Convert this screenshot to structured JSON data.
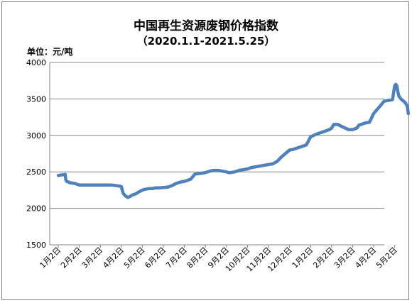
{
  "chart_data": {
    "type": "line",
    "title": "中国再生资源废钢价格指数",
    "subtitle": "（2020.1.1-2021.5.25）",
    "ylabel": "单位：元/吨",
    "xlabel": "",
    "ylim": [
      1500,
      4000
    ],
    "yticks": [
      "1500",
      "2000",
      "2500",
      "3000",
      "3500",
      "4000"
    ],
    "categories": [
      "1月2日",
      "2月2日",
      "3月2日",
      "4月2日",
      "5月2日",
      "6月2日",
      "7月2日",
      "8月2日",
      "9月2日",
      "10月2日",
      "11月2日",
      "12月2日",
      "1月2日",
      "2月2日",
      "3月2日",
      "4月2日",
      "5月2日"
    ],
    "grid": true,
    "legend": "none",
    "line_color": "#4f81bd",
    "series": [
      {
        "x": [
          0,
          0.1,
          0.2,
          0.33,
          0.36,
          0.4,
          0.5,
          0.55,
          0.6,
          0.7,
          0.8,
          0.9,
          1.0,
          1.1,
          1.2,
          1.5,
          2.0,
          2.5,
          2.8,
          3.0,
          3.05,
          3.1,
          3.2,
          3.3,
          3.4,
          3.5,
          3.7,
          3.8,
          4.0,
          4.1,
          4.3,
          4.5,
          4.6,
          4.8,
          5.0,
          5.2,
          5.4,
          5.6,
          5.8,
          6.0,
          6.3,
          6.5,
          6.8,
          7.0,
          7.2,
          7.4,
          7.6,
          7.8,
          8.0,
          8.1,
          8.2,
          8.4,
          8.6,
          8.8,
          9.0,
          9.2,
          9.4,
          9.6,
          9.8,
          10.0,
          10.2,
          10.4,
          10.6,
          10.8,
          11.0,
          11.2,
          11.4,
          11.6,
          11.8,
          12.0,
          12.3,
          12.6,
          12.9,
          13.0,
          13.1,
          13.3,
          13.5,
          13.8,
          14.0,
          14.2,
          14.3,
          14.6,
          14.8,
          15.0,
          15.3,
          15.5,
          15.7,
          15.9,
          16.0,
          16.05,
          16.1,
          16.15,
          16.2,
          16.3,
          16.5,
          16.6,
          16.65
        ],
        "values": [
          2450,
          2455,
          2460,
          2465,
          2390,
          2370,
          2360,
          2350,
          2350,
          2345,
          2340,
          2330,
          2320,
          2320,
          2320,
          2320,
          2320,
          2320,
          2310,
          2300,
          2240,
          2200,
          2170,
          2150,
          2160,
          2180,
          2200,
          2220,
          2250,
          2260,
          2270,
          2270,
          2280,
          2280,
          2285,
          2290,
          2310,
          2340,
          2360,
          2370,
          2400,
          2470,
          2480,
          2490,
          2510,
          2520,
          2520,
          2510,
          2500,
          2490,
          2490,
          2500,
          2520,
          2530,
          2540,
          2560,
          2570,
          2580,
          2590,
          2600,
          2610,
          2640,
          2700,
          2750,
          2800,
          2810,
          2830,
          2850,
          2870,
          2980,
          3020,
          3050,
          3080,
          3100,
          3150,
          3150,
          3120,
          3080,
          3080,
          3100,
          3140,
          3170,
          3180,
          3300,
          3400,
          3470,
          3480,
          3490,
          3680,
          3700,
          3680,
          3600,
          3540,
          3500,
          3450,
          3400,
          3300
        ]
      }
    ]
  }
}
